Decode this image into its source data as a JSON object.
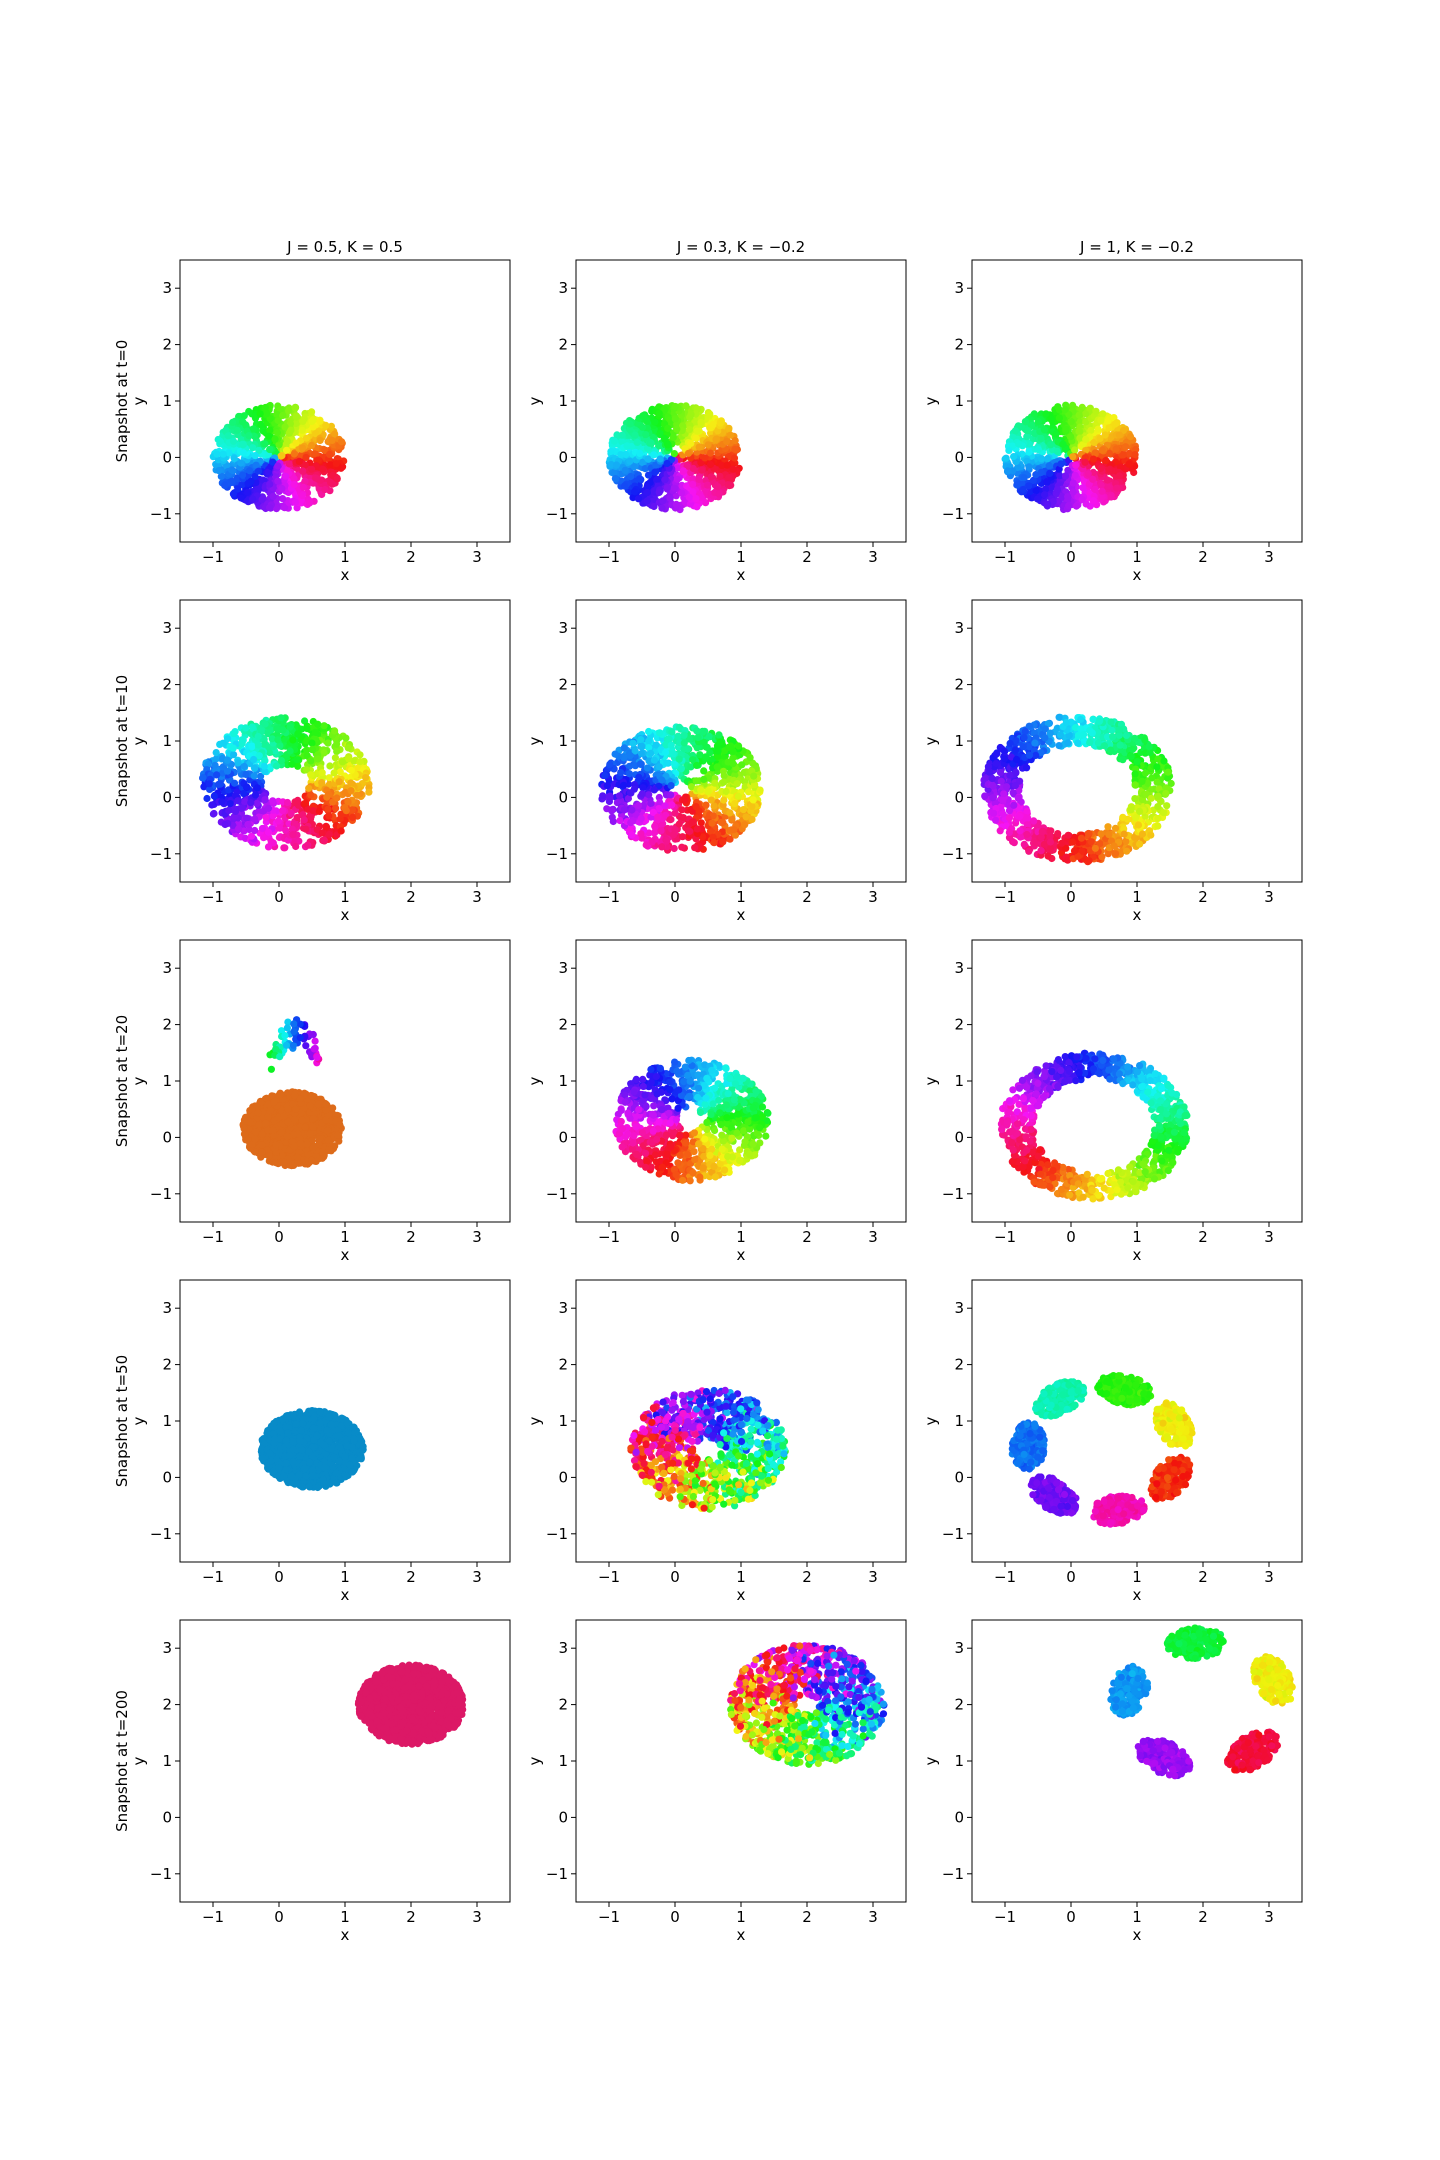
{
  "chart_data": {
    "type": "scatter",
    "column_titles": [
      "J = 0.5, K = 0.5",
      "J = 0.3, K = −0.2",
      "J = 1, K = −0.2"
    ],
    "row_labels": [
      "Snapshot at t=0",
      "Snapshot at t=10",
      "Snapshot at t=20",
      "Snapshot at t=50",
      "Snapshot at t=200"
    ],
    "xlabel": "x",
    "ylabel": "y",
    "xlim": [
      -1.5,
      3.5
    ],
    "ylim": [
      -1.5,
      3.5
    ],
    "xticks": [
      -1,
      0,
      1,
      2,
      3
    ],
    "yticks": [
      -1,
      0,
      1,
      2,
      3
    ],
    "xtick_labels": [
      "−1",
      "0",
      "1",
      "2",
      "3"
    ],
    "ytick_labels": [
      "−1",
      "0",
      "1",
      "2",
      "3"
    ],
    "grid": false,
    "colormap": "hsv (color = phase angle)",
    "panels": [
      {
        "row": 0,
        "col": 0,
        "shape": "disk",
        "cx": 0,
        "cy": 0,
        "r_inner": 0,
        "r_outer": 1,
        "color_mode": "phase_sectors"
      },
      {
        "row": 0,
        "col": 1,
        "shape": "disk",
        "cx": 0,
        "cy": 0,
        "r_inner": 0,
        "r_outer": 1,
        "color_mode": "phase_sectors"
      },
      {
        "row": 0,
        "col": 2,
        "shape": "disk",
        "cx": 0,
        "cy": 0,
        "r_inner": 0,
        "r_outer": 1,
        "color_mode": "phase_sectors"
      },
      {
        "row": 1,
        "col": 0,
        "shape": "annulus",
        "cx": 0.1,
        "cy": 0.25,
        "r_inner": 0.35,
        "r_outer": 1.25,
        "color_mode": "phase_rotated"
      },
      {
        "row": 1,
        "col": 1,
        "shape": "annulus",
        "cx": 0.1,
        "cy": 0.15,
        "r_inner": 0.15,
        "r_outer": 1.2,
        "color_mode": "phase_rotated"
      },
      {
        "row": 1,
        "col": 2,
        "shape": "annulus",
        "cx": 0.1,
        "cy": 0.15,
        "r_inner": 0.85,
        "r_outer": 1.4,
        "color_mode": "phase_rotated"
      },
      {
        "row": 2,
        "col": 0,
        "shape": "sync_disk",
        "cx": 0.2,
        "cy": 0.15,
        "r_inner": 0,
        "r_outer": 0.75,
        "sync_color": "#dd6b1a",
        "tail": true
      },
      {
        "row": 2,
        "col": 1,
        "shape": "annulus",
        "cx": 0.25,
        "cy": 0.3,
        "r_inner": 0.2,
        "r_outer": 1.15,
        "color_mode": "phase_rotated"
      },
      {
        "row": 2,
        "col": 2,
        "shape": "annulus",
        "cx": 0.35,
        "cy": 0.2,
        "r_inner": 0.9,
        "r_outer": 1.4,
        "color_mode": "phase_rotated"
      },
      {
        "row": 3,
        "col": 0,
        "shape": "solid_disk",
        "cx": 0.5,
        "cy": 0.5,
        "r_inner": 0,
        "r_outer": 0.78,
        "sync_color": "#088bc8"
      },
      {
        "row": 3,
        "col": 1,
        "shape": "annulus",
        "cx": 0.5,
        "cy": 0.5,
        "r_inner": 0.2,
        "r_outer": 1.15,
        "color_mode": "phase_noisy"
      },
      {
        "row": 3,
        "col": 2,
        "shape": "clusters",
        "cx": 0.5,
        "cy": 0.5,
        "r_ring": 1.15,
        "n_clusters": 7,
        "cluster_r": 0.42
      },
      {
        "row": 4,
        "col": 0,
        "shape": "solid_disk",
        "cx": 2,
        "cy": 2,
        "r_inner": 0,
        "r_outer": 0.8,
        "sync_color": "#dc1866"
      },
      {
        "row": 4,
        "col": 1,
        "shape": "annulus",
        "cx": 2,
        "cy": 2,
        "r_inner": 0.18,
        "r_outer": 1.15,
        "color_mode": "phase_noisy"
      },
      {
        "row": 4,
        "col": 2,
        "shape": "clusters",
        "cx": 2,
        "cy": 2,
        "r_ring": 1.15,
        "n_clusters": 5,
        "cluster_r": 0.45
      }
    ]
  }
}
